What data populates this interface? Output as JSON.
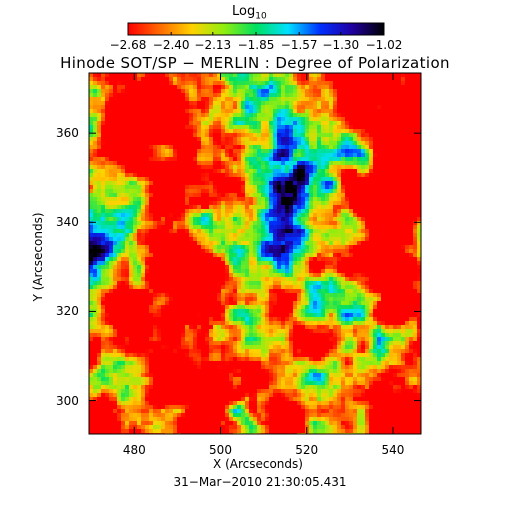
{
  "chart_data": {
    "type": "heatmap",
    "title": "Hinode SOT/SP − MERLIN : Degree of Polarization",
    "xlabel": "X (Arcseconds)",
    "ylabel": "Y (Arcseconds)",
    "x_ticks": [
      "480",
      "500",
      "520",
      "540"
    ],
    "x_tick_values": [
      480,
      500,
      520,
      540
    ],
    "y_ticks": [
      "300",
      "320",
      "340",
      "360"
    ],
    "y_tick_values": [
      300,
      320,
      340,
      360
    ],
    "xlim": [
      469.5,
      546.5
    ],
    "ylim": [
      292.5,
      373.5
    ],
    "colorbar": {
      "label": "Log",
      "label_subscript": "10",
      "tick_labels": [
        "−2.68",
        "−2.40",
        "−2.13",
        "−1.85",
        "−1.57",
        "−1.30",
        "−1.02"
      ],
      "tick_values": [
        -2.68,
        -2.4,
        -2.13,
        -1.85,
        -1.57,
        -1.3,
        -1.02
      ],
      "range": [
        -2.68,
        -1.02
      ],
      "colormap": [
        "#ff0000",
        "#ff6a00",
        "#ffd200",
        "#90ee10",
        "#00e060",
        "#00e0ff",
        "#0030ff",
        "#2000a0",
        "#000000"
      ]
    },
    "timestamp": "31−Mar−2010 21:30:05.431"
  }
}
